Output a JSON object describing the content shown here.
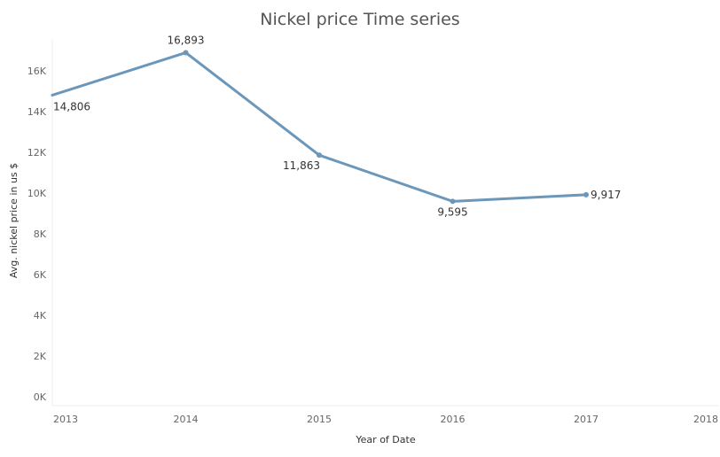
{
  "chart_data": {
    "type": "line",
    "title": "Nickel price Time series",
    "xlabel": "Year of Date",
    "ylabel": "Avg. nickel price in us $",
    "x": [
      2013,
      2014,
      2015,
      2016,
      2017
    ],
    "x_ticks": [
      "2013",
      "2014",
      "2015",
      "2016",
      "2017",
      "2018"
    ],
    "xlim": [
      2013,
      2018
    ],
    "y_ticks": [
      "0K",
      "2K",
      "4K",
      "6K",
      "8K",
      "10K",
      "12K",
      "14K",
      "16K"
    ],
    "ylim": [
      0,
      17000
    ],
    "series": [
      {
        "values": [
          14806,
          16893,
          11863,
          9595,
          9917
        ],
        "data_labels": [
          "14,806",
          "16,893",
          "11,863",
          "9,595",
          "9,917"
        ],
        "color": "#6b97bb"
      }
    ],
    "grid": false,
    "legend": "none"
  }
}
